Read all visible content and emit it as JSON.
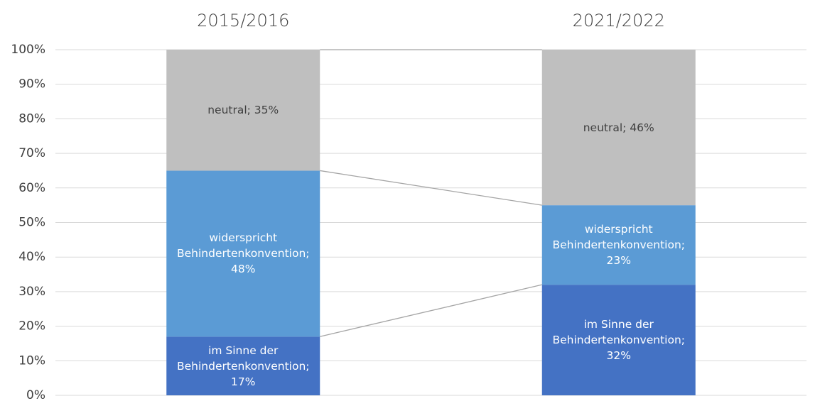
{
  "chart_data": {
    "type": "stacked_bar",
    "categories": [
      "2015/2016",
      "2021/2022"
    ],
    "series": [
      {
        "name": "im Sinne der Behindertenkonvention",
        "color": "#4472c4",
        "values": [
          17,
          32
        ],
        "value_labels": [
          "im Sinne der Behindertenkonvention; 17%",
          "im Sinne der Behindertenkonvention; 32%"
        ],
        "label_color": "#ffffff"
      },
      {
        "name": "widerspricht Behindertenkonvention",
        "color": "#5b9bd5",
        "values": [
          48,
          23
        ],
        "value_labels": [
          "widerspricht Behindertenkonvention; 48%",
          "widerspricht Behindertenkonvention; 23%"
        ],
        "label_color": "#ffffff"
      },
      {
        "name": "neutral",
        "color": "#bfbfbf",
        "values": [
          35,
          46
        ],
        "value_labels": [
          "neutral; 35%",
          "neutral; 46%"
        ],
        "label_color": "#404040"
      }
    ],
    "ylim": [
      0,
      100
    ],
    "yticks": [
      {
        "value": 0,
        "label": "0%"
      },
      {
        "value": 10,
        "label": "10%"
      },
      {
        "value": 20,
        "label": "20%"
      },
      {
        "value": 30,
        "label": "30%"
      },
      {
        "value": 40,
        "label": "40%"
      },
      {
        "value": 50,
        "label": "50%"
      },
      {
        "value": 60,
        "label": "60%"
      },
      {
        "value": 70,
        "label": "70%"
      },
      {
        "value": 80,
        "label": "80%"
      },
      {
        "value": 90,
        "label": "90%"
      },
      {
        "value": 100,
        "label": "100%"
      }
    ],
    "grid": true,
    "series_lines": true
  }
}
